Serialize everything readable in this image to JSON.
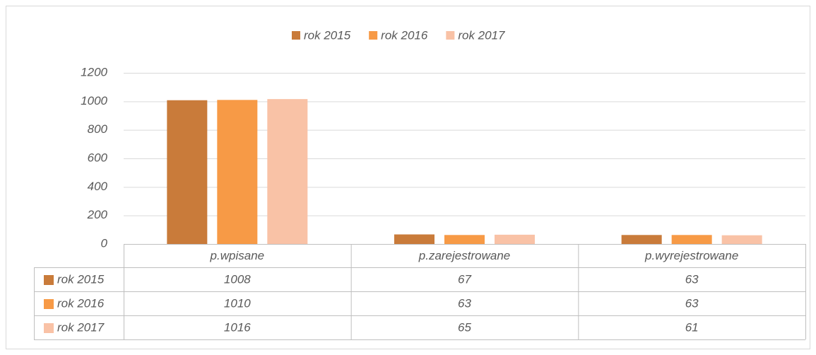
{
  "chart_data": {
    "type": "bar",
    "categories": [
      "p.wpisane",
      "p.zarejestrowane",
      "p.wyrejestrowane"
    ],
    "series": [
      {
        "name": "rok 2015",
        "color": "#c97b3a",
        "values": [
          1008,
          67,
          63
        ]
      },
      {
        "name": "rok 2016",
        "color": "#f79a46",
        "values": [
          1010,
          63,
          63
        ]
      },
      {
        "name": "rok 2017",
        "color": "#f9c2a6",
        "values": [
          1016,
          65,
          61
        ]
      }
    ],
    "ylim": [
      0,
      1200
    ],
    "yticks": [
      0,
      200,
      400,
      600,
      800,
      1000,
      1200
    ],
    "grid": true,
    "legend": "top",
    "data_table": true
  }
}
